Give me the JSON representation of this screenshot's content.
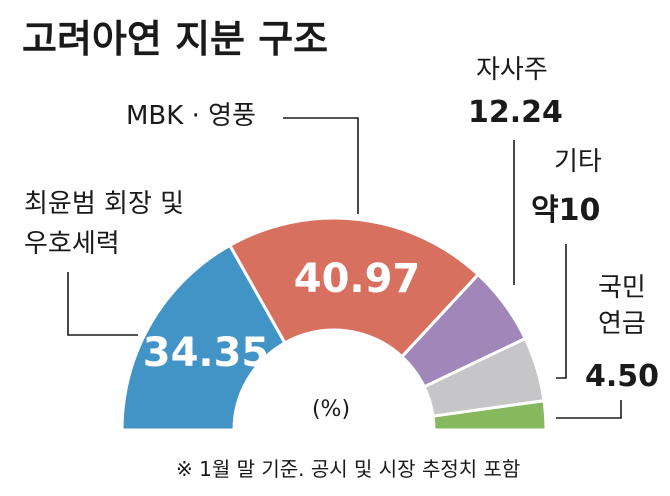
{
  "chart_data": {
    "type": "pie",
    "title": "고려아연 지분 구조",
    "unit": "(%)",
    "note": "※ 1월 말 기준. 공시 및 시장 추정치 포함",
    "series": [
      {
        "name": "최윤범 회장 및 우호세력",
        "label_lines": [
          "최윤범 회장 및",
          "우호세력"
        ],
        "value": 34.35,
        "display": "34.35",
        "color": "#4394c6"
      },
      {
        "name": "MBK · 영풍",
        "label_lines": [
          "MBK · 영풍"
        ],
        "value": 40.97,
        "display": "40.97",
        "color": "#d8705f"
      },
      {
        "name": "자사주",
        "label_lines": [
          "자사주"
        ],
        "value": 12.24,
        "display": "12.24",
        "color": "#a186b9"
      },
      {
        "name": "기타",
        "label_lines": [
          "기타"
        ],
        "value": 10,
        "display": "약10",
        "color": "#c6c6c8"
      },
      {
        "name": "국민연금",
        "label_lines": [
          "국민",
          "연금"
        ],
        "value": 4.5,
        "display": "4.50",
        "color": "#86b85e"
      }
    ]
  }
}
